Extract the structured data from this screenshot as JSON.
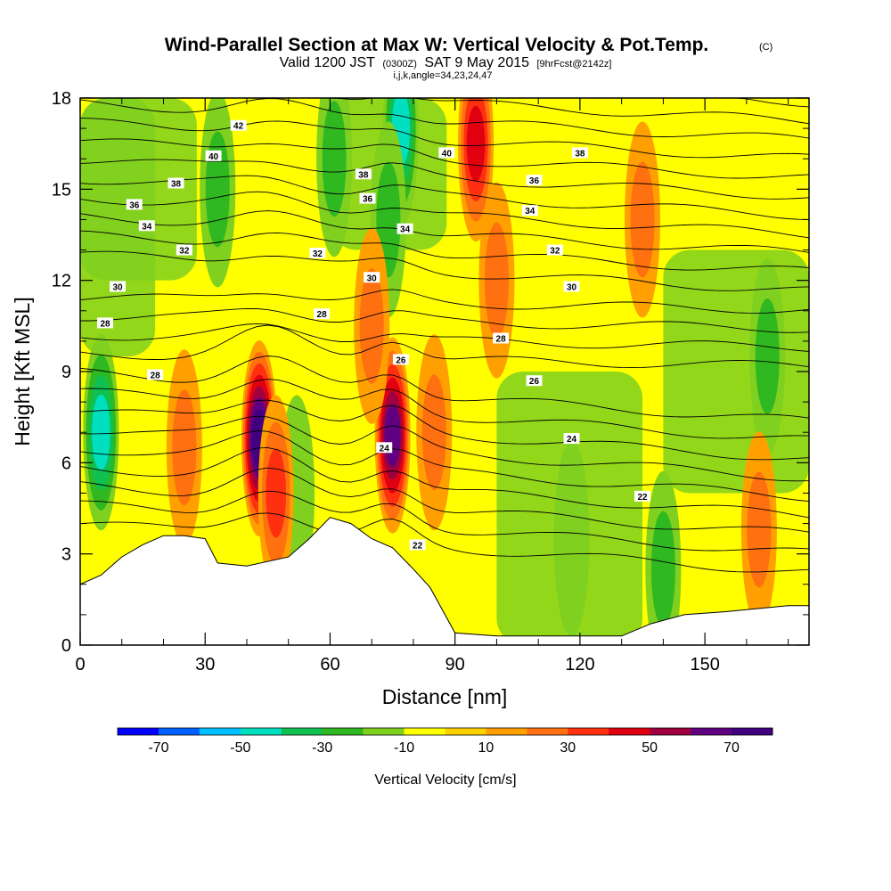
{
  "header": {
    "title": "Wind-Parallel Section at Max W: Vertical Velocity & Pot.Temp.",
    "copyright": "(C)",
    "valid_prefix": "Valid 1200 JST",
    "valid_z": "(0300Z)",
    "valid_date": "SAT 9 May 2015",
    "forecast": "[9hrFcst@2142z]",
    "indices": "i,j,k,angle=34,23,24,47"
  },
  "chart_data": {
    "type": "heatmap",
    "xlabel": "Distance [nm]",
    "ylabel": "Height [Kft MSL]",
    "xlim": [
      0,
      175
    ],
    "ylim": [
      0,
      18
    ],
    "xticks": [
      0,
      30,
      60,
      90,
      120,
      150
    ],
    "xtick_labels": [
      "0",
      "30",
      "60",
      "90",
      "120",
      "150"
    ],
    "yticks": [
      0,
      3,
      6,
      9,
      12,
      15,
      18
    ],
    "ytick_labels": [
      "0",
      "3",
      "6",
      "9",
      "12",
      "15",
      "18"
    ],
    "colorbar": {
      "label": "Vertical Velocity [cm/s]",
      "levels": [
        -80,
        -70,
        -60,
        -50,
        -40,
        -30,
        -20,
        -10,
        0,
        10,
        20,
        30,
        40,
        50,
        60,
        70,
        80
      ],
      "colors": [
        "#0000ff",
        "#0060ff",
        "#00c0ff",
        "#00e0c0",
        "#10c050",
        "#30b820",
        "#80d020",
        "#ffff00",
        "#ffd000",
        "#ffa000",
        "#ff7010",
        "#ff3010",
        "#e00010",
        "#a00040",
        "#600080",
        "#400080"
      ],
      "tick_labels": [
        "-70",
        "-50",
        "-30",
        "-10",
        "10",
        "30",
        "50",
        "70"
      ]
    },
    "isentropes_label_values": [
      "42",
      "40",
      "40",
      "38",
      "38",
      "38",
      "36",
      "36",
      "36",
      "34",
      "34",
      "34",
      "32",
      "32",
      "32",
      "30",
      "30",
      "30",
      "28",
      "28",
      "28",
      "28",
      "26",
      "26",
      "24",
      "24",
      "22",
      "22"
    ],
    "terrain_kft": [
      [
        0,
        2.0
      ],
      [
        5,
        2.3
      ],
      [
        10,
        2.9
      ],
      [
        15,
        3.3
      ],
      [
        20,
        3.6
      ],
      [
        25,
        3.6
      ],
      [
        30,
        3.5
      ],
      [
        33,
        2.7
      ],
      [
        40,
        2.6
      ],
      [
        50,
        2.9
      ],
      [
        55,
        3.5
      ],
      [
        60,
        4.2
      ],
      [
        65,
        4.0
      ],
      [
        70,
        3.5
      ],
      [
        75,
        3.2
      ],
      [
        80,
        2.5
      ],
      [
        84,
        1.9
      ],
      [
        90,
        0.4
      ],
      [
        100,
        0.3
      ],
      [
        130,
        0.3
      ],
      [
        137,
        0.7
      ],
      [
        145,
        1.0
      ],
      [
        155,
        1.1
      ],
      [
        170,
        1.3
      ],
      [
        175,
        1.3
      ]
    ],
    "updraft_cores": [
      {
        "x": 43,
        "y": 6.8,
        "w": 75
      },
      {
        "x": 75,
        "y": 6.9,
        "w": 65
      },
      {
        "x": 47,
        "y": 5.0,
        "w": 35
      },
      {
        "x": 25,
        "y": 6.5,
        "w": 25
      },
      {
        "x": 85,
        "y": 7.0,
        "w": 25
      },
      {
        "x": 70,
        "y": 10.5,
        "w": 20
      },
      {
        "x": 95,
        "y": 16.5,
        "w": 45
      },
      {
        "x": 100,
        "y": 12.0,
        "w": 20
      },
      {
        "x": 135,
        "y": 14.0,
        "w": 20
      },
      {
        "x": 163,
        "y": 3.8,
        "w": 25
      }
    ],
    "downdraft_cores": [
      {
        "x": 5,
        "y": 7.0,
        "w": -40
      },
      {
        "x": 77,
        "y": 17.0,
        "w": -40
      },
      {
        "x": 74,
        "y": 14.0,
        "w": -25
      },
      {
        "x": 61,
        "y": 16.0,
        "w": -25
      },
      {
        "x": 33,
        "y": 15.0,
        "w": -20
      },
      {
        "x": 140,
        "y": 2.5,
        "w": -20
      },
      {
        "x": 165,
        "y": 9.5,
        "w": -20
      },
      {
        "x": 118,
        "y": 3.5,
        "w": -18
      },
      {
        "x": 52,
        "y": 5.0,
        "w": -15
      }
    ]
  }
}
